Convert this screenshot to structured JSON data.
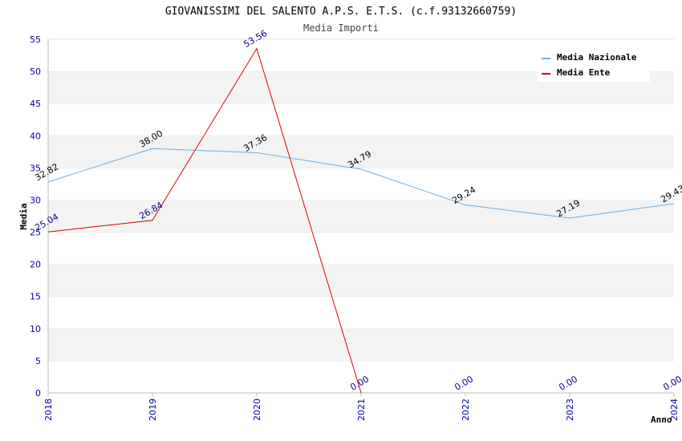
{
  "chart_data": {
    "type": "line",
    "title": "GIOVANISSIMI DEL SALENTO A.P.S. E.T.S. (c.f.93132660759)",
    "subtitle": "Media Importi",
    "xlabel": "Anno",
    "ylabel": "Media",
    "ylim": [
      0,
      55
    ],
    "yticks": [
      "0",
      "5",
      "10",
      "15",
      "20",
      "25",
      "30",
      "35",
      "40",
      "45",
      "50",
      "55"
    ],
    "categories": [
      "2018",
      "2019",
      "2020",
      "2021",
      "2022",
      "2023",
      "2024"
    ],
    "legend_position": "top-right",
    "grid": "horizontal bands",
    "series": [
      {
        "name": "Media Nazionale",
        "color": "#6aaee8",
        "label_color": "#000000",
        "values": [
          32.82,
          38.0,
          37.36,
          34.79,
          29.24,
          27.19,
          29.43
        ],
        "labels": [
          "32.82",
          "38.00",
          "37.36",
          "34.79",
          "29.24",
          "27.19",
          "29.43"
        ]
      },
      {
        "name": "Media Ente",
        "color": "#dd0000",
        "label_color": "#00008b",
        "values": [
          25.04,
          26.84,
          53.56,
          0.0,
          0.0,
          0.0,
          0.0
        ],
        "labels": [
          "25.04",
          "26.84",
          "53.56",
          "0.00",
          "0.00",
          "0.00",
          "0.00"
        ],
        "line_points": 4
      }
    ]
  }
}
